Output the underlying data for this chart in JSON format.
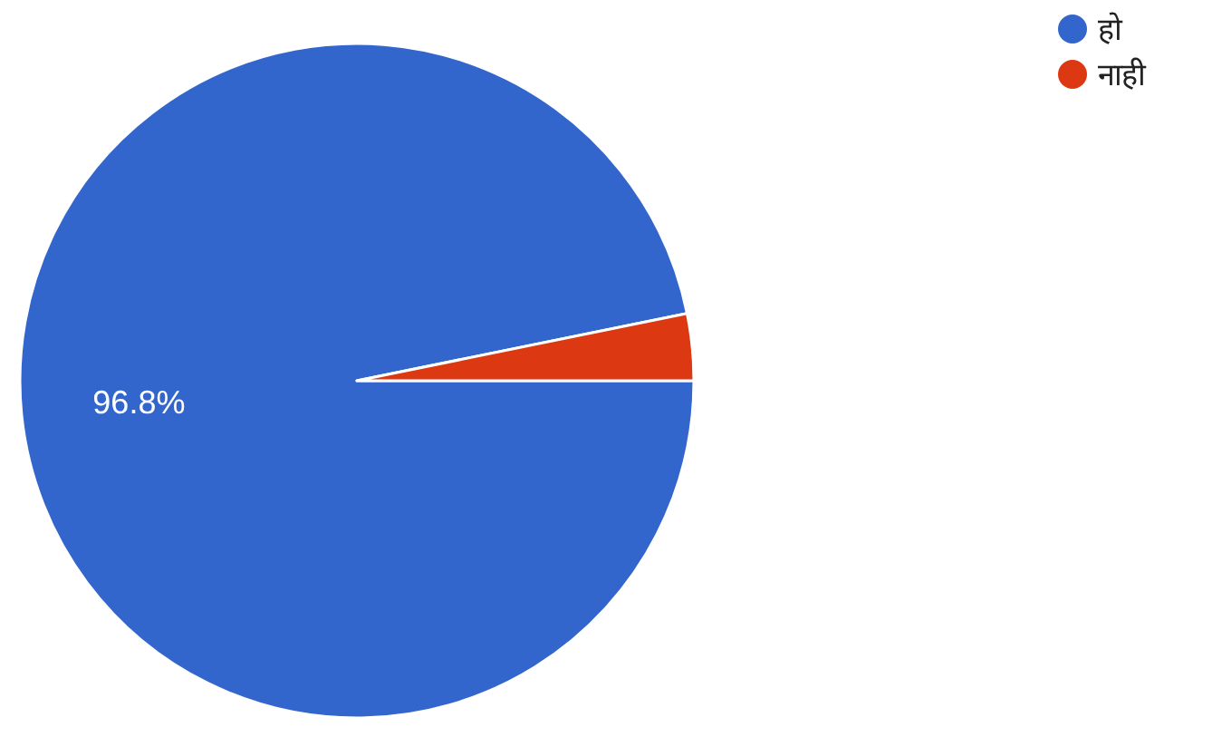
{
  "chart_data": {
    "type": "pie",
    "categories": [
      "हो",
      "नाही"
    ],
    "values": [
      96.8,
      3.2
    ],
    "colors": [
      "#3366cc",
      "#dc3912"
    ],
    "value_labels": [
      "96.8%",
      null
    ],
    "legend": "top right"
  }
}
